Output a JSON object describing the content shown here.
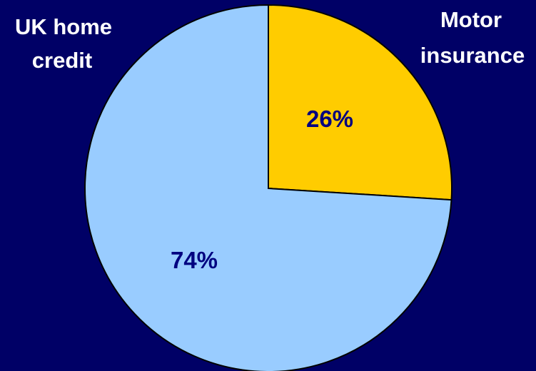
{
  "chart_data": {
    "type": "pie",
    "slices": [
      {
        "label_lines": [
          "Motor",
          "insurance"
        ],
        "value": 26,
        "value_label": "26%",
        "color": "#ffcc00"
      },
      {
        "label_lines": [
          "UK home",
          "credit"
        ],
        "value": 74,
        "value_label": "74%",
        "color": "#99ccff"
      }
    ],
    "start": "12 o'clock",
    "direction": "clockwise",
    "legend": "none",
    "background": "#000066",
    "edge_color": "#000000"
  }
}
